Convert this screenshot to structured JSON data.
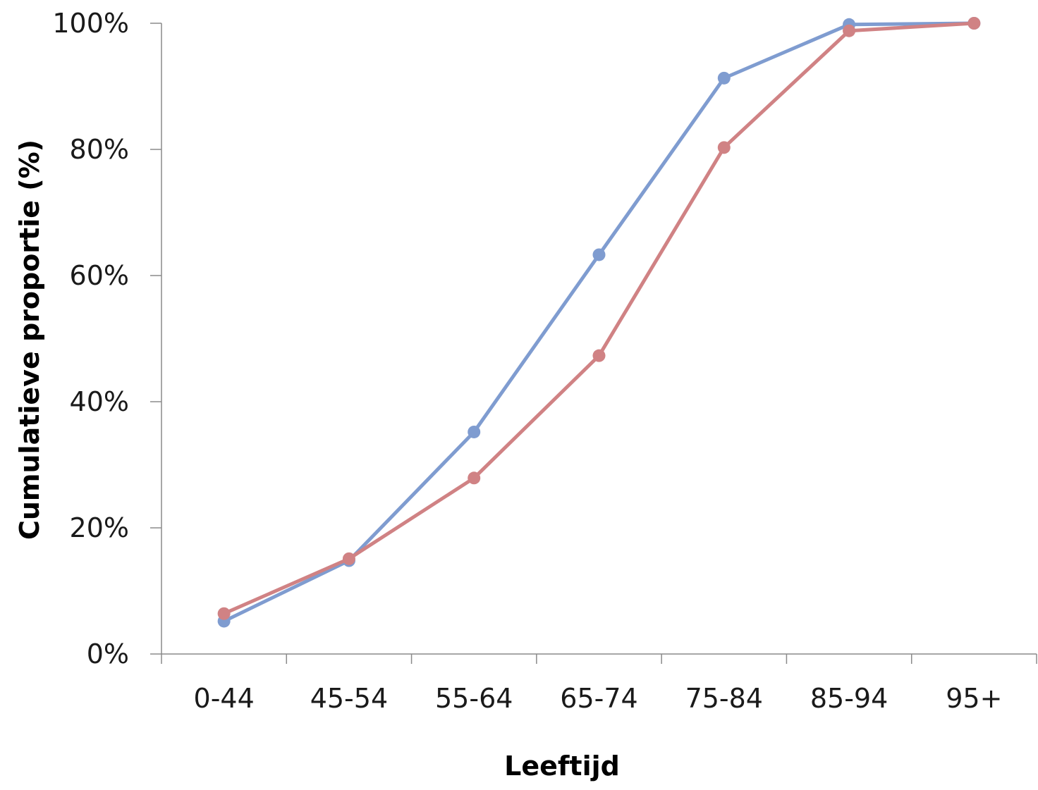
{
  "chart_data": {
    "type": "line",
    "xlabel": "Leeftijd",
    "ylabel": "Cumulatieve proportie (%)",
    "categories": [
      "0-44",
      "45-54",
      "55-64",
      "65-74",
      "75-84",
      "85-94",
      "95+"
    ],
    "ylim": [
      0,
      100
    ],
    "yticks": [
      0,
      20,
      40,
      60,
      80,
      100
    ],
    "ytick_labels": [
      "0%",
      "20%",
      "40%",
      "60%",
      "80%",
      "100%"
    ],
    "grid": false,
    "legend": "none",
    "series": [
      {
        "color": "#7f9cd0",
        "values": [
          5.2,
          14.8,
          35.2,
          63.3,
          91.3,
          99.8,
          100
        ]
      },
      {
        "color": "#d08284",
        "values": [
          6.4,
          15.1,
          27.9,
          47.3,
          80.3,
          98.8,
          100
        ]
      }
    ]
  }
}
